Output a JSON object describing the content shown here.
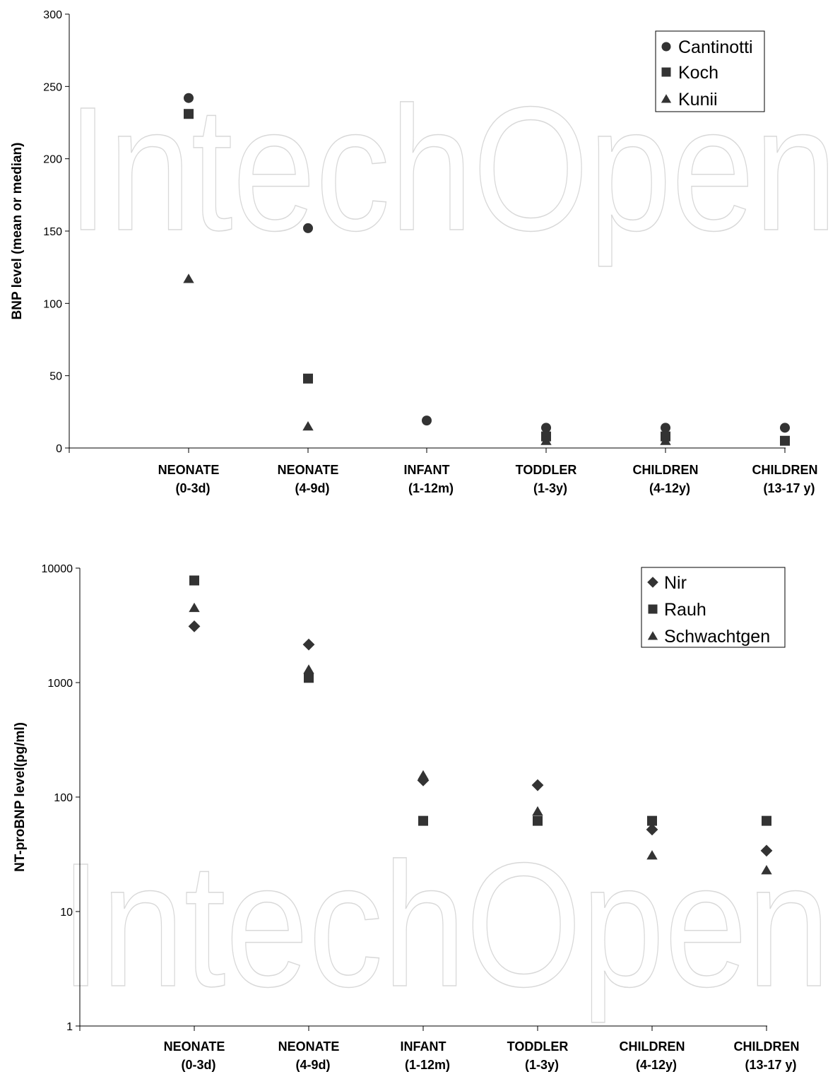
{
  "watermark": "IntechOpen",
  "chart_data": [
    {
      "type": "scatter",
      "ylabel": "BNP level (mean or median)",
      "xlabel": "",
      "yscale": "linear",
      "ylim": [
        0,
        300
      ],
      "yticks": [
        "0",
        "50",
        "100",
        "150",
        "200",
        "250",
        "300"
      ],
      "categories": [
        [
          "NEONATE",
          "(0-3d)"
        ],
        [
          "NEONATE",
          "(4-9d)"
        ],
        [
          "INFANT",
          "(1-12m)"
        ],
        [
          "TODDLER",
          "(1-3y)"
        ],
        [
          "CHILDREN",
          "(4-12y)"
        ],
        [
          "CHILDREN",
          "(13-17 y)"
        ]
      ],
      "legend_position": "top-right",
      "series": [
        {
          "name": "Cantinotti",
          "marker": "circle",
          "values": [
            242,
            152,
            19,
            14,
            14,
            14
          ]
        },
        {
          "name": "Koch",
          "marker": "square",
          "values": [
            231,
            48,
            null,
            8,
            8,
            5
          ]
        },
        {
          "name": "Kunii",
          "marker": "triangle",
          "values": [
            117,
            15,
            null,
            5,
            5,
            null
          ]
        }
      ]
    },
    {
      "type": "scatter",
      "ylabel": "NT-proBNP level(pg/ml)",
      "xlabel": "",
      "yscale": "log",
      "ylim": [
        1,
        10000
      ],
      "yticks": [
        "1",
        "10",
        "100",
        "1000",
        "10000"
      ],
      "categories": [
        [
          "NEONATE",
          "(0-3d)"
        ],
        [
          "NEONATE",
          "(4-9d)"
        ],
        [
          "INFANT",
          "(1-12m)"
        ],
        [
          "TODDLER",
          "(1-3y)"
        ],
        [
          "CHILDREN",
          "(4-12y)"
        ],
        [
          "CHILDREN",
          "(13-17 y)"
        ]
      ],
      "legend_position": "top-right",
      "series": [
        {
          "name": "Nir",
          "marker": "diamond",
          "values": [
            3100,
            2150,
            140,
            127,
            52,
            34
          ]
        },
        {
          "name": "Rauh",
          "marker": "square",
          "values": [
            7800,
            1100,
            62,
            62,
            62,
            62
          ]
        },
        {
          "name": "Schwachtgen",
          "marker": "triangle",
          "values": [
            4500,
            1300,
            155,
            75,
            31,
            23
          ]
        }
      ]
    }
  ]
}
